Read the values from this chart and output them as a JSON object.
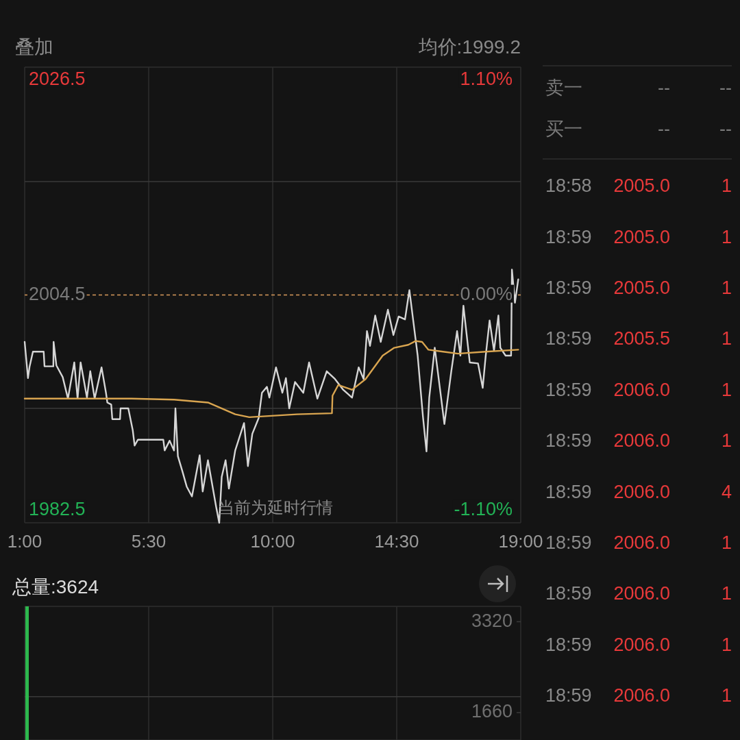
{
  "chart_data": [
    {
      "type": "line",
      "title": "叠加",
      "annotations": [
        "均价:1999.2",
        "当前为延时行情"
      ],
      "xlim": [
        1,
        19
      ],
      "xticks": [
        {
          "value": 1,
          "label": "1:00"
        },
        {
          "value": 5.5,
          "label": "5:30"
        },
        {
          "value": 10,
          "label": "10:00"
        },
        {
          "value": 14.5,
          "label": "14:30"
        },
        {
          "value": 19,
          "label": "19:00"
        }
      ],
      "ylim": [
        1981.2,
        2027.8
      ],
      "yticks": [
        1982.5,
        {
          "value": 1992.9,
          "label": null
        },
        2004.5,
        {
          "value": 2016.1,
          "label": null
        },
        2026.5
      ],
      "y2lim": [
        -1.165,
        1.165
      ],
      "y2ticks": [
        {
          "value": -1.1,
          "label": "-1.10%"
        },
        {
          "value": 0,
          "label": "0.00%"
        },
        {
          "value": 1.1,
          "label": "1.10%"
        }
      ],
      "grid": true,
      "ref_lines": [
        {
          "axis": "y",
          "value": 2004.5,
          "color": "#d99a5b",
          "line_style": "dashed"
        }
      ],
      "series": [
        {
          "color": "#d6d6d6",
          "x": [
            1.0,
            1.12,
            1.18,
            1.3,
            1.69,
            1.72,
            2.04,
            2.05,
            2.15,
            2.38,
            2.57,
            2.8,
            2.92,
            3.03,
            3.26,
            3.38,
            3.54,
            3.79,
            3.95,
            4.0,
            4.14,
            4.18,
            4.46,
            4.48,
            4.76,
            4.92,
            4.99,
            5.11,
            6.03,
            6.08,
            6.26,
            6.42,
            6.47,
            6.56,
            6.72,
            6.88,
            7.07,
            7.35,
            7.46,
            7.65,
            7.95,
            8.06,
            8.15,
            8.29,
            8.41,
            8.64,
            8.96,
            9.1,
            9.26,
            9.49,
            9.61,
            9.79,
            9.88,
            10.12,
            10.35,
            10.48,
            10.6,
            10.81,
            11.11,
            11.32,
            11.62,
            11.96,
            12.26,
            12.56,
            12.88,
            13.12,
            13.3,
            13.42,
            13.53,
            13.72,
            13.92,
            14.18,
            14.38,
            14.57,
            14.8,
            14.96,
            15.08,
            15.26,
            15.45,
            15.58,
            15.68,
            15.88,
            16.11,
            16.23,
            16.48,
            16.69,
            16.81,
            16.92,
            17.15,
            17.45,
            17.62,
            17.73,
            17.87,
            18.03,
            18.19,
            18.26,
            18.45,
            18.65,
            18.68,
            18.79,
            18.91
          ],
          "values": [
            1999.7,
            1996.0,
            1997.2,
            1998.7,
            1998.7,
            1997.2,
            1997.2,
            1999.7,
            1997.3,
            1996.1,
            1993.9,
            1997.6,
            1993.9,
            1997.6,
            1994.0,
            1996.7,
            1993.9,
            1997.1,
            1994.5,
            1993.5,
            1993.3,
            1991.8,
            1991.8,
            1992.9,
            1992.9,
            1990.7,
            1989.1,
            1989.7,
            1989.7,
            1988.6,
            1989.6,
            1988.6,
            1992.9,
            1988.0,
            1986.5,
            1984.9,
            1983.9,
            1988.1,
            1984.4,
            1987.6,
            1982.8,
            1981.2,
            1985.9,
            1987.6,
            1984.7,
            1988.6,
            1991.4,
            1987.0,
            1990.3,
            1991.9,
            1994.5,
            1995.1,
            1994.0,
            1997.1,
            1994.5,
            1996.0,
            1992.9,
            1995.6,
            1994.5,
            1997.6,
            1993.9,
            1996.7,
            1995.9,
            1994.8,
            1994.0,
            1997.1,
            1995.9,
            2000.8,
            1999.3,
            2002.4,
            1999.7,
            2003.0,
            2000.4,
            2002.3,
            2002.0,
            2005.0,
            2002.3,
            1998.3,
            1992.1,
            1988.5,
            1994.0,
            1999.1,
            1994.0,
            1991.3,
            1996.7,
            2000.8,
            1998.3,
            2003.4,
            1997.6,
            1997.5,
            1995.0,
            1998.3,
            2001.9,
            1998.8,
            2002.4,
            1999.1,
            1998.3,
            1998.3,
            2007.1,
            2003.7,
            2006.1
          ]
        },
        {
          "color": "#d9a550",
          "x": [
            1.0,
            4.88,
            6.42,
            7.65,
            8.64,
            9.15,
            10.88,
            12.15,
            12.17,
            12.38,
            12.88,
            13.37,
            13.99,
            14.41,
            14.92,
            15.19,
            15.42,
            15.65,
            16.18,
            16.72,
            17.73,
            18.91
          ],
          "values": [
            1993.9,
            1993.9,
            1993.8,
            1993.5,
            1992.3,
            1992.0,
            1992.3,
            1992.4,
            1994.2,
            1995.3,
            1994.8,
            1995.9,
            1998.3,
            1999.1,
            1999.4,
            1999.8,
            1999.7,
            1998.9,
            1998.7,
            1998.5,
            1998.7,
            1998.9
          ]
        }
      ]
    },
    {
      "type": "bar",
      "title": "总量:3624",
      "x": [
        1.0
      ],
      "values": [
        3600
      ],
      "color": "#2db84d",
      "xlim": [
        1,
        19
      ],
      "xticks": [
        1,
        5.5,
        10,
        14.5,
        19
      ],
      "ylim": [
        1160,
        3600
      ],
      "yticks": [
        1660,
        3320
      ],
      "grid": true,
      "tick_labels": "y",
      "ref_lines": [
        {
          "axis": "y",
          "value": 1950,
          "color": "#3a3a3a",
          "line_style": "solid"
        }
      ]
    },
    {
      "type": "other",
      "annotations": [
        "卖一 -- --",
        "买一 -- --",
        "18:58 2005.0 1",
        "18:59 2005.0 1",
        "18:59 2005.0 1",
        "18:59 2005.5 1",
        "18:59 2006.0 1",
        "18:59 2006.0 1",
        "18:59 2006.0 4",
        "18:59 2006.0 1",
        "18:59 2006.0 1",
        "18:59 2006.0 1",
        "18:59 2006.0 1"
      ]
    }
  ]
}
